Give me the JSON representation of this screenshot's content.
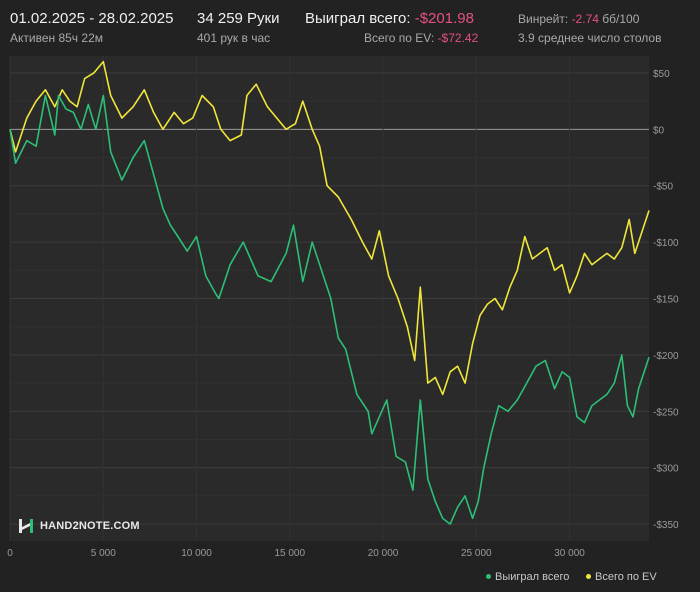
{
  "header": {
    "date_range": "01.02.2025 - 28.02.2025",
    "active": "Активен 85ч 22м",
    "hands": "34 259 Руки",
    "hands_per_hour": "401 рук в час",
    "won_label": "Выиграл всего:",
    "won_value": "-$201.98",
    "ev_label": "Всего по EV:",
    "ev_value": "-$72.42",
    "winrate_label": "Винрейт:",
    "winrate_value": "-2.74",
    "winrate_unit": "бб/100",
    "tables": "3.9 среднее число столов"
  },
  "logo": {
    "text": "HAND2NOTE.COM"
  },
  "colors": {
    "won": "#2cbf76",
    "ev": "#f0e63a",
    "negative": "#e4507f",
    "background": "#222222"
  },
  "chart_data": {
    "type": "line",
    "xlabel": "",
    "ylabel": "",
    "xlim": [
      0,
      34259
    ],
    "ylim": [
      -365,
      65
    ],
    "x_ticks": [
      0,
      5000,
      10000,
      15000,
      20000,
      25000,
      30000
    ],
    "x_tick_labels": [
      "0",
      "5 000",
      "10 000",
      "15 000",
      "20 000",
      "25 000",
      "30 000"
    ],
    "y_ticks": [
      50,
      0,
      -50,
      -100,
      -150,
      -200,
      -250,
      -300,
      -350
    ],
    "y_tick_labels": [
      "$50",
      "$0",
      "-$50",
      "-$100",
      "-$150",
      "-$200",
      "-$250",
      "-$300",
      "-$350"
    ],
    "grid": true,
    "legend": "bottom-right",
    "series": [
      {
        "name": "Выиграл всего",
        "color": "#2cbf76",
        "x": [
          0,
          300,
          900,
          1400,
          1900,
          2400,
          2600,
          3000,
          3400,
          3800,
          4200,
          4600,
          5000,
          5400,
          6000,
          6600,
          7200,
          7700,
          8200,
          8600,
          9000,
          9500,
          10000,
          10500,
          11000,
          11200,
          11800,
          12500,
          13300,
          14000,
          14800,
          15200,
          15700,
          16200,
          16700,
          17200,
          17600,
          18000,
          18600,
          19200,
          19400,
          19800,
          20200,
          20700,
          21200,
          21600,
          22000,
          22400,
          22800,
          23200,
          23600,
          24000,
          24400,
          24800,
          25100,
          25400,
          25800,
          26200,
          26700,
          27200,
          27700,
          28200,
          28700,
          29200,
          29600,
          30000,
          30400,
          30800,
          31200,
          31600,
          32000,
          32400,
          32800,
          33100,
          33400,
          33700,
          34000,
          34259
        ],
        "y": [
          0,
          -30,
          -10,
          -15,
          30,
          -5,
          30,
          18,
          15,
          0,
          22,
          0,
          30,
          -20,
          -45,
          -25,
          -10,
          -40,
          -70,
          -85,
          -95,
          -108,
          -95,
          -130,
          -145,
          -150,
          -120,
          -100,
          -130,
          -135,
          -110,
          -85,
          -135,
          -100,
          -125,
          -150,
          -185,
          -195,
          -235,
          -250,
          -270,
          -255,
          -240,
          -290,
          -295,
          -320,
          -240,
          -310,
          -330,
          -345,
          -350,
          -335,
          -325,
          -345,
          -330,
          -300,
          -270,
          -245,
          -250,
          -240,
          -225,
          -210,
          -205,
          -230,
          -215,
          -220,
          -255,
          -260,
          -245,
          -240,
          -235,
          -225,
          -200,
          -245,
          -255,
          -230,
          -215,
          -202
        ]
      },
      {
        "name": "Всего по EV",
        "color": "#f0e63a",
        "x": [
          0,
          300,
          900,
          1400,
          1900,
          2400,
          2800,
          3200,
          3600,
          4000,
          4500,
          5000,
          5400,
          6000,
          6600,
          7200,
          7700,
          8200,
          8800,
          9300,
          9800,
          10300,
          10900,
          11300,
          11800,
          12400,
          12700,
          13200,
          13800,
          14300,
          14800,
          15300,
          15700,
          16200,
          16600,
          17000,
          17600,
          18300,
          18900,
          19400,
          19800,
          20300,
          20800,
          21300,
          21700,
          22000,
          22400,
          22800,
          23200,
          23600,
          24000,
          24400,
          24800,
          25200,
          25600,
          26000,
          26400,
          26800,
          27200,
          27600,
          28000,
          28400,
          28800,
          29200,
          29600,
          30000,
          30400,
          30800,
          31200,
          31600,
          32000,
          32400,
          32800,
          33200,
          33500,
          33800,
          34259
        ],
        "y": [
          0,
          -20,
          10,
          25,
          35,
          20,
          35,
          25,
          20,
          45,
          50,
          60,
          30,
          10,
          20,
          35,
          15,
          0,
          15,
          5,
          10,
          30,
          20,
          0,
          -10,
          -5,
          30,
          40,
          20,
          10,
          0,
          5,
          25,
          0,
          -15,
          -50,
          -60,
          -80,
          -100,
          -115,
          -90,
          -130,
          -150,
          -175,
          -205,
          -140,
          -225,
          -220,
          -235,
          -215,
          -210,
          -225,
          -190,
          -165,
          -155,
          -150,
          -160,
          -140,
          -125,
          -95,
          -115,
          -110,
          -105,
          -125,
          -120,
          -145,
          -130,
          -110,
          -120,
          -115,
          -110,
          -115,
          -105,
          -80,
          -110,
          -95,
          -72
        ]
      }
    ]
  }
}
